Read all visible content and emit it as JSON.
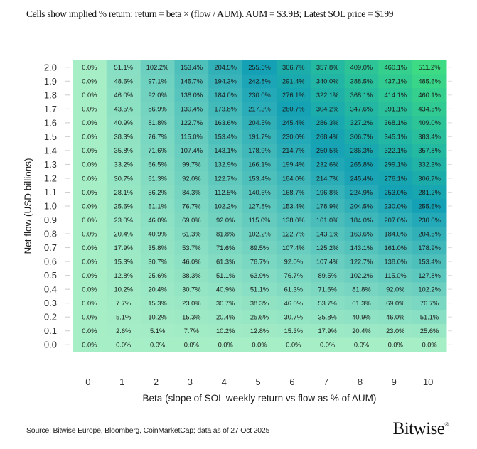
{
  "subtitle": "Cells show implied % return: return = beta × (flow / AUM).  AUM = $3.9B; Latest SOL price = $199",
  "source": "Source: Bitwise Europe, Bloomberg, CoinMarketCap; data as of 27 Oct 2025",
  "logo": "Bitwise",
  "chart_data": {
    "type": "heatmap",
    "xlabel": "Beta (slope of SOL weekly return vs flow as % of AUM)",
    "ylabel": "Net flow (USD billions)",
    "x": [
      0,
      1,
      2,
      3,
      4,
      5,
      6,
      7,
      8,
      9,
      10
    ],
    "y": [
      2.0,
      1.9,
      1.8,
      1.7,
      1.6,
      1.5,
      1.4,
      1.3,
      1.2,
      1.1,
      1.0,
      0.9,
      0.8,
      0.7,
      0.6,
      0.5,
      0.4,
      0.3,
      0.2,
      0.1,
      0.0
    ],
    "value_unit": "%",
    "colors": {
      "low": "#a6eec6",
      "mid": "#14a1b5",
      "high": "#3ddc84"
    },
    "values": [
      [
        0.0,
        51.1,
        102.2,
        153.4,
        204.5,
        255.6,
        306.7,
        357.8,
        409.0,
        460.1,
        511.2
      ],
      [
        0.0,
        48.6,
        97.1,
        145.7,
        194.3,
        242.8,
        291.4,
        340.0,
        388.5,
        437.1,
        485.6
      ],
      [
        0.0,
        46.0,
        92.0,
        138.0,
        184.0,
        230.0,
        276.1,
        322.1,
        368.1,
        414.1,
        460.1
      ],
      [
        0.0,
        43.5,
        86.9,
        130.4,
        173.8,
        217.3,
        260.7,
        304.2,
        347.6,
        391.1,
        434.5
      ],
      [
        0.0,
        40.9,
        81.8,
        122.7,
        163.6,
        204.5,
        245.4,
        286.3,
        327.2,
        368.1,
        409.0
      ],
      [
        0.0,
        38.3,
        76.7,
        115.0,
        153.4,
        191.7,
        230.0,
        268.4,
        306.7,
        345.1,
        383.4
      ],
      [
        0.0,
        35.8,
        71.6,
        107.4,
        143.1,
        178.9,
        214.7,
        250.5,
        286.3,
        322.1,
        357.8
      ],
      [
        0.0,
        33.2,
        66.5,
        99.7,
        132.9,
        166.1,
        199.4,
        232.6,
        265.8,
        299.1,
        332.3
      ],
      [
        0.0,
        30.7,
        61.3,
        92.0,
        122.7,
        153.4,
        184.0,
        214.7,
        245.4,
        276.1,
        306.7
      ],
      [
        0.0,
        28.1,
        56.2,
        84.3,
        112.5,
        140.6,
        168.7,
        196.8,
        224.9,
        253.0,
        281.2
      ],
      [
        0.0,
        25.6,
        51.1,
        76.7,
        102.2,
        127.8,
        153.4,
        178.9,
        204.5,
        230.0,
        255.6
      ],
      [
        0.0,
        23.0,
        46.0,
        69.0,
        92.0,
        115.0,
        138.0,
        161.0,
        184.0,
        207.0,
        230.0
      ],
      [
        0.0,
        20.4,
        40.9,
        61.3,
        81.8,
        102.2,
        122.7,
        143.1,
        163.6,
        184.0,
        204.5
      ],
      [
        0.0,
        17.9,
        35.8,
        53.7,
        71.6,
        89.5,
        107.4,
        125.2,
        143.1,
        161.0,
        178.9
      ],
      [
        0.0,
        15.3,
        30.7,
        46.0,
        61.3,
        76.7,
        92.0,
        107.4,
        122.7,
        138.0,
        153.4
      ],
      [
        0.0,
        12.8,
        25.6,
        38.3,
        51.1,
        63.9,
        76.7,
        89.5,
        102.2,
        115.0,
        127.8
      ],
      [
        0.0,
        10.2,
        20.4,
        30.7,
        40.9,
        51.1,
        61.3,
        71.6,
        81.8,
        92.0,
        102.2
      ],
      [
        0.0,
        7.7,
        15.3,
        23.0,
        30.7,
        38.3,
        46.0,
        53.7,
        61.3,
        69.0,
        76.7
      ],
      [
        0.0,
        5.1,
        10.2,
        15.3,
        20.4,
        25.6,
        30.7,
        35.8,
        40.9,
        46.0,
        51.1
      ],
      [
        0.0,
        2.6,
        5.1,
        7.7,
        10.2,
        12.8,
        15.3,
        17.9,
        20.4,
        23.0,
        25.6
      ],
      [
        0.0,
        0.0,
        0.0,
        0.0,
        0.0,
        0.0,
        0.0,
        0.0,
        0.0,
        0.0,
        0.0
      ]
    ]
  }
}
